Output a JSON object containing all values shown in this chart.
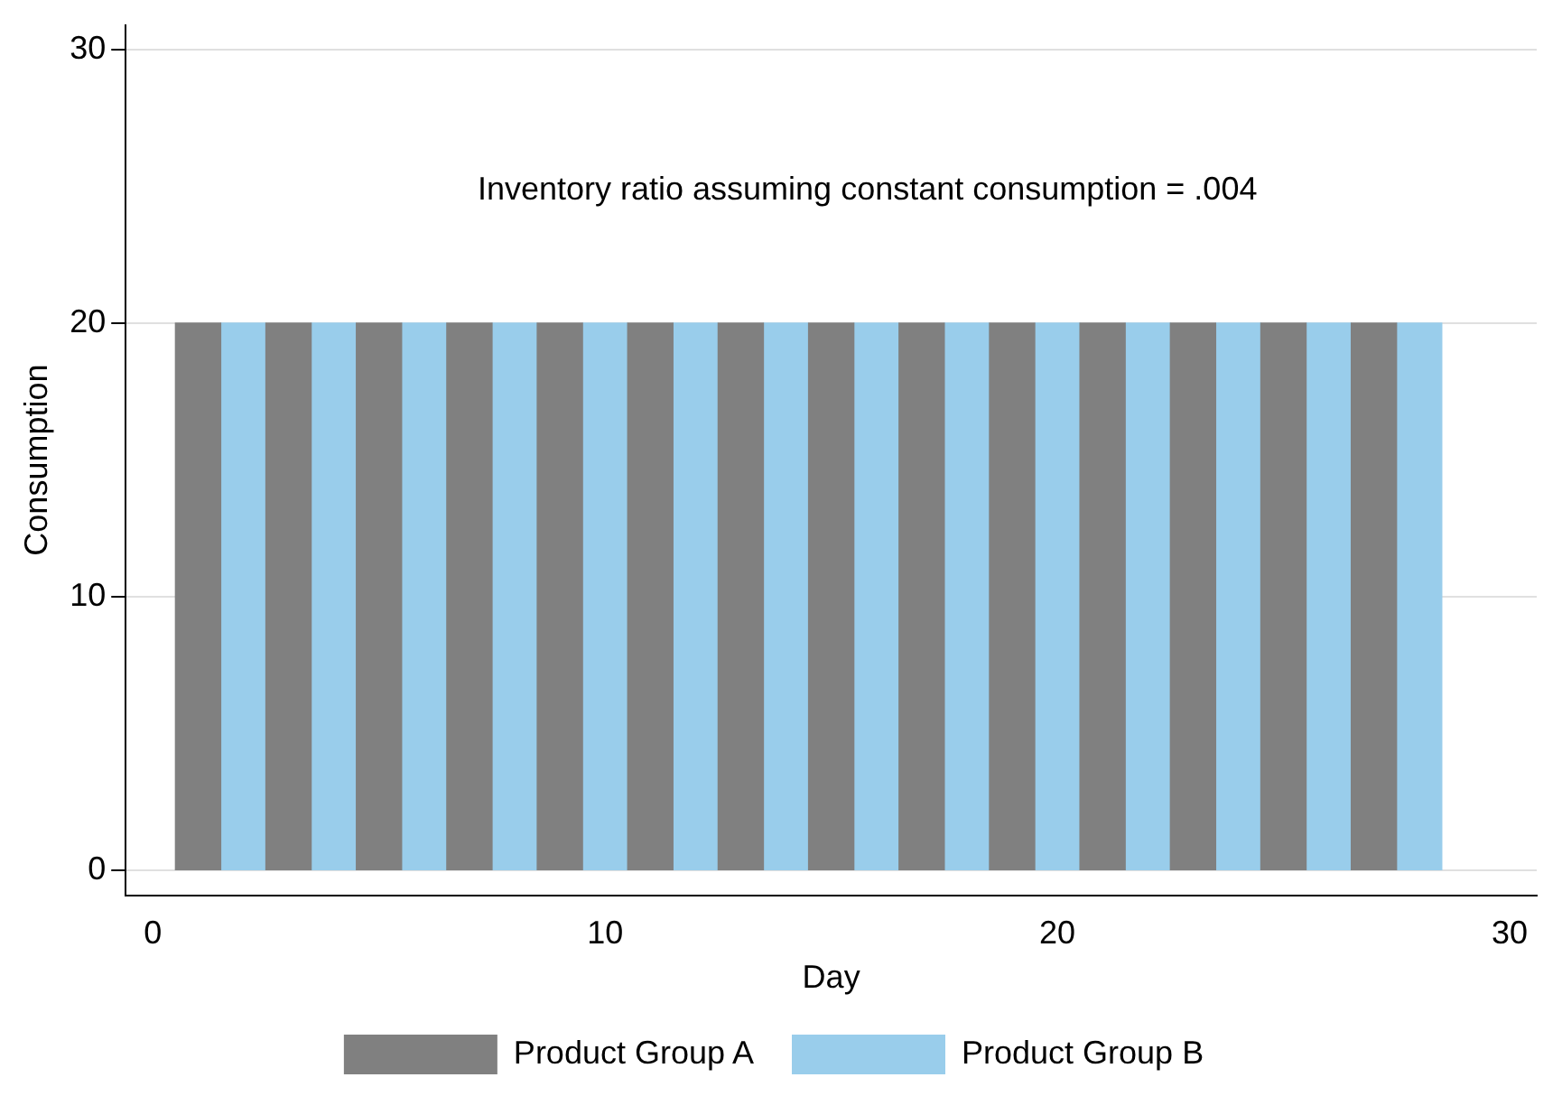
{
  "chart_data": {
    "type": "bar",
    "xlabel": "Day",
    "ylabel": "Consumption",
    "annotations": [
      "Inventory ratio assuming constant consumption = .004"
    ],
    "series": [
      {
        "name": "Product Group A",
        "color": "#808080",
        "x": [
          1,
          3,
          5,
          7,
          9,
          11,
          13,
          15,
          17,
          19,
          21,
          23,
          25,
          27
        ],
        "values": [
          20,
          20,
          20,
          20,
          20,
          20,
          20,
          20,
          20,
          20,
          20,
          20,
          20,
          20
        ]
      },
      {
        "name": "Product Group B",
        "color": "#99cdeb",
        "x": [
          2,
          4,
          6,
          8,
          10,
          12,
          14,
          16,
          18,
          20,
          22,
          24,
          26,
          28
        ],
        "values": [
          20,
          20,
          20,
          20,
          20,
          20,
          20,
          20,
          20,
          20,
          20,
          20,
          20,
          20
        ]
      }
    ],
    "xlim": [
      -0.6,
      30.6
    ],
    "xticks": [
      0,
      10,
      20,
      30
    ],
    "ylim": [
      -0.9,
      30.9
    ],
    "yticks": [
      0,
      10,
      20,
      30
    ],
    "grid": "y",
    "legend": "bottom"
  }
}
